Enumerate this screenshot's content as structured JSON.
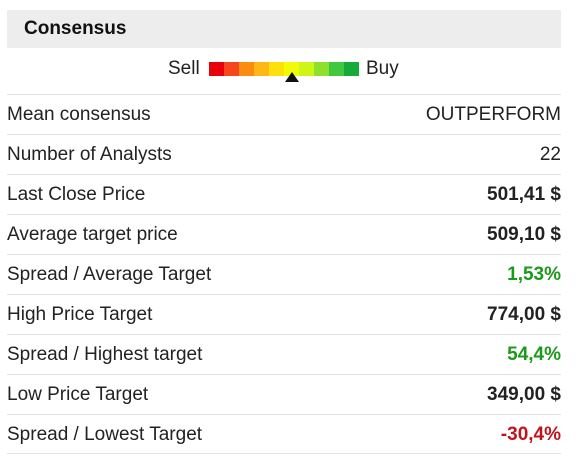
{
  "header": {
    "title": "Consensus"
  },
  "gauge": {
    "sell_label": "Sell",
    "buy_label": "Buy",
    "segments": [
      "#e8000b",
      "#f5461e",
      "#fb8c12",
      "#fdb716",
      "#fee00a",
      "#f1fb02",
      "#cdf516",
      "#8fe02d",
      "#40c83e",
      "#16aa3a"
    ],
    "position": 0.55
  },
  "rows": [
    {
      "label": "Mean consensus",
      "value": "OUTPERFORM",
      "style": "normal"
    },
    {
      "label": "Number of Analysts",
      "value": "22",
      "style": "normal"
    },
    {
      "label": "Last Close Price",
      "value": "501,41 $",
      "style": "bold"
    },
    {
      "label": "Average target price",
      "value": "509,10 $",
      "style": "bold"
    },
    {
      "label": "Spread / Average Target",
      "value": "1,53%",
      "style": "pos"
    },
    {
      "label": "High Price Target",
      "value": "774,00 $",
      "style": "bold"
    },
    {
      "label": "Spread / Highest target",
      "value": "54,4%",
      "style": "pos"
    },
    {
      "label": "Low Price Target",
      "value": "349,00 $",
      "style": "bold"
    },
    {
      "label": "Spread / Lowest Target",
      "value": "-30,4%",
      "style": "neg"
    }
  ],
  "colors": {
    "positive": "#1a9a1a",
    "negative": "#c0141c",
    "header_bg": "#ededed"
  }
}
